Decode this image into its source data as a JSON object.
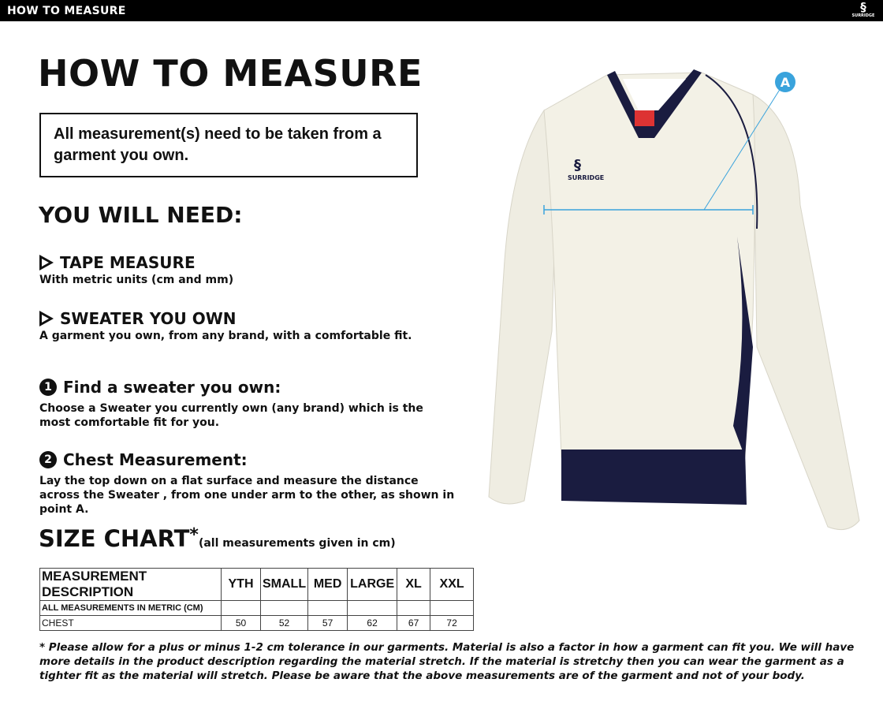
{
  "header": {
    "title": "HOW TO MEASURE",
    "logo_text": "SURRIDGE"
  },
  "title": "HOW TO MEASURE",
  "notice": "All measurement(s) need to be taken from a garment you own.",
  "need": {
    "heading": "YOU WILL NEED:",
    "items": [
      {
        "title": "TAPE MEASURE",
        "desc": "With metric units (cm and mm)",
        "icon": "play-triangle-icon"
      },
      {
        "title": "SWEATER YOU OWN",
        "desc": "A garment you own, from any brand, with a comfortable fit.",
        "icon": "play-triangle-icon"
      }
    ]
  },
  "steps": [
    {
      "num": "1",
      "title": "Find a sweater you own:",
      "desc": "Choose a Sweater you currently own (any brand) which is the most comfortable fit for you."
    },
    {
      "num": "2",
      "title": "Chest Measurement:",
      "desc": "Lay the top down on a flat surface and measure the distance across the Sweater , from one under arm to the other, as shown in point A."
    }
  ],
  "size_chart": {
    "heading": "SIZE CHART",
    "asterisk": "*",
    "note": "(all measurements given in cm)",
    "columns": [
      "MEASUREMENT DESCRIPTION",
      "YTH",
      "SMALL",
      "MED",
      "LARGE",
      "XL",
      "XXL"
    ],
    "subheader": "ALL MEASUREMENTS IN METRIC (CM)",
    "rows": [
      {
        "label": "CHEST",
        "values": [
          "50",
          "52",
          "57",
          "62",
          "67",
          "72"
        ]
      }
    ]
  },
  "footnote": "* Please allow for a plus or minus 1-2 cm tolerance in our garments. Material is also a factor in how a garment can fit you. We will have more details in the product description regarding the material stretch.  If the material is stretchy then you can wear the garment as a tighter fit as the material will stretch.  Please be aware that the above measurements are of the garment and not of your body.",
  "image": {
    "point_label": "A",
    "brand": "SURRIDGE",
    "colors": {
      "body": "#f3f1e6",
      "trim": "#1a1c40",
      "measure": "#3aa3dc"
    }
  }
}
